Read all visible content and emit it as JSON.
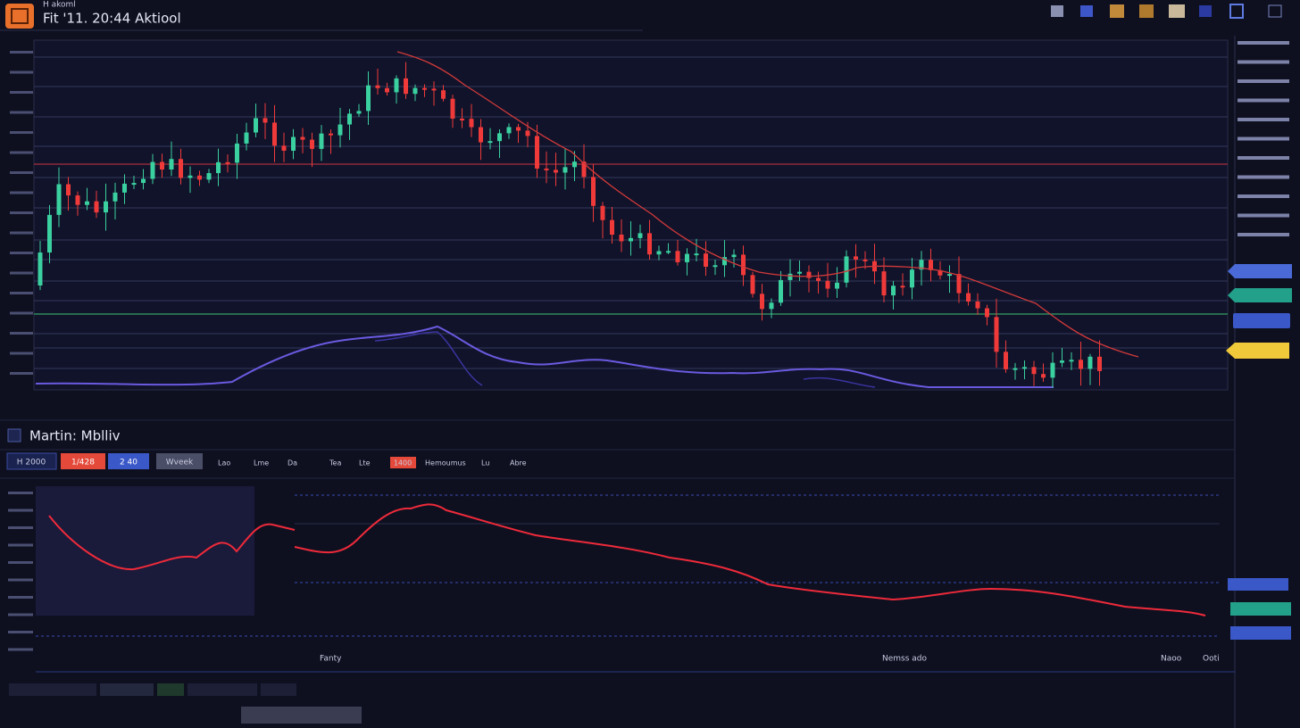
{
  "header": {
    "caption": "H akoml",
    "title": "Fit '11. 20:44 Aktiool"
  },
  "panel": {
    "title": "Martin: Mblliv",
    "buttons": [
      "H 2000",
      "1/428",
      "2 40",
      "Wveek"
    ],
    "tabs": [
      "Lao",
      "Lme",
      "Da",
      "Tea",
      "Lte",
      "1400",
      "Hemoumus",
      "Lu",
      "Abre"
    ]
  },
  "lower_chart": {
    "labels": [
      "Fanty",
      "Nemss ado",
      "Naoo",
      "Ooti"
    ]
  }
}
